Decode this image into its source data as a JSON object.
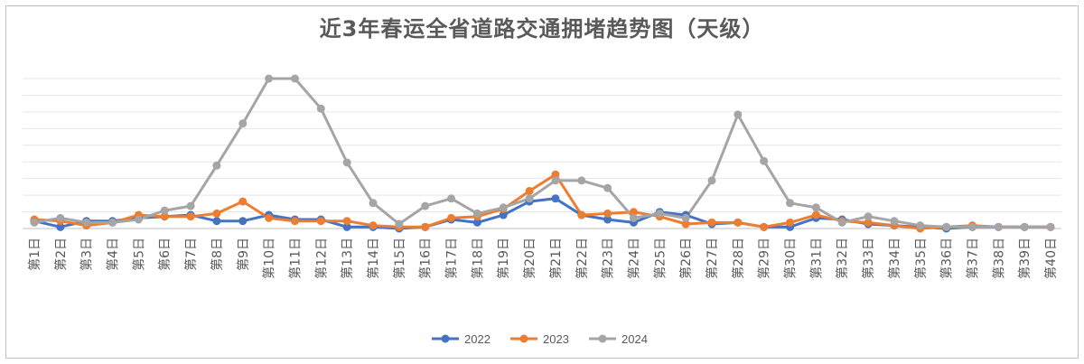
{
  "chart_data": {
    "type": "line",
    "title": "近3年春运全省道路交通拥堵趋势图（天级）",
    "xlabel": "",
    "ylabel": "",
    "ylim": [
      0,
      100
    ],
    "grid": true,
    "legend": "bottom",
    "categories": [
      "第1日",
      "第2日",
      "第3日",
      "第4日",
      "第5日",
      "第6日",
      "第7日",
      "第8日",
      "第9日",
      "第10日",
      "第11日",
      "第12日",
      "第13日",
      "第14日",
      "第15日",
      "第16日",
      "第17日",
      "第18日",
      "第19日",
      "第20日",
      "第21日",
      "第22日",
      "第23日",
      "第24日",
      "第25日",
      "第26日",
      "第27日",
      "第28日",
      "第29日",
      "第30日",
      "第31日",
      "第32日",
      "第33日",
      "第34日",
      "第35日",
      "第36日",
      "第37日",
      "第38日",
      "第39日",
      "第40日"
    ],
    "series": [
      {
        "name": "2022",
        "color": "#4472C4",
        "values": [
          5,
          1,
          5,
          5,
          7,
          8,
          9,
          5,
          5,
          9,
          6,
          6,
          1,
          1,
          0,
          1,
          6,
          4,
          9,
          18,
          20,
          9,
          6,
          4,
          11,
          9,
          3,
          4,
          1,
          1,
          7,
          6,
          3,
          2,
          1,
          0,
          1,
          1,
          1,
          1
        ]
      },
      {
        "name": "2023",
        "color": "#ED7D31",
        "values": [
          6,
          5,
          2,
          4,
          9,
          8,
          8,
          10,
          18,
          7,
          5,
          5,
          5,
          2,
          1,
          1,
          7,
          8,
          13,
          25,
          36,
          9,
          10,
          11,
          8,
          3,
          4,
          4,
          1,
          4,
          9,
          5,
          4,
          2,
          0,
          1,
          2,
          1,
          1,
          1
        ]
      },
      {
        "name": "2024",
        "color": "#A5A5A5",
        "values": [
          4,
          7,
          4,
          4,
          6,
          12,
          15,
          42,
          70,
          100,
          100,
          80,
          44,
          17,
          3,
          15,
          20,
          10,
          14,
          20,
          32,
          32,
          27,
          7,
          10,
          7,
          32,
          76,
          45,
          17,
          14,
          4,
          8,
          5,
          2,
          1,
          1,
          1,
          1,
          1
        ]
      }
    ]
  }
}
